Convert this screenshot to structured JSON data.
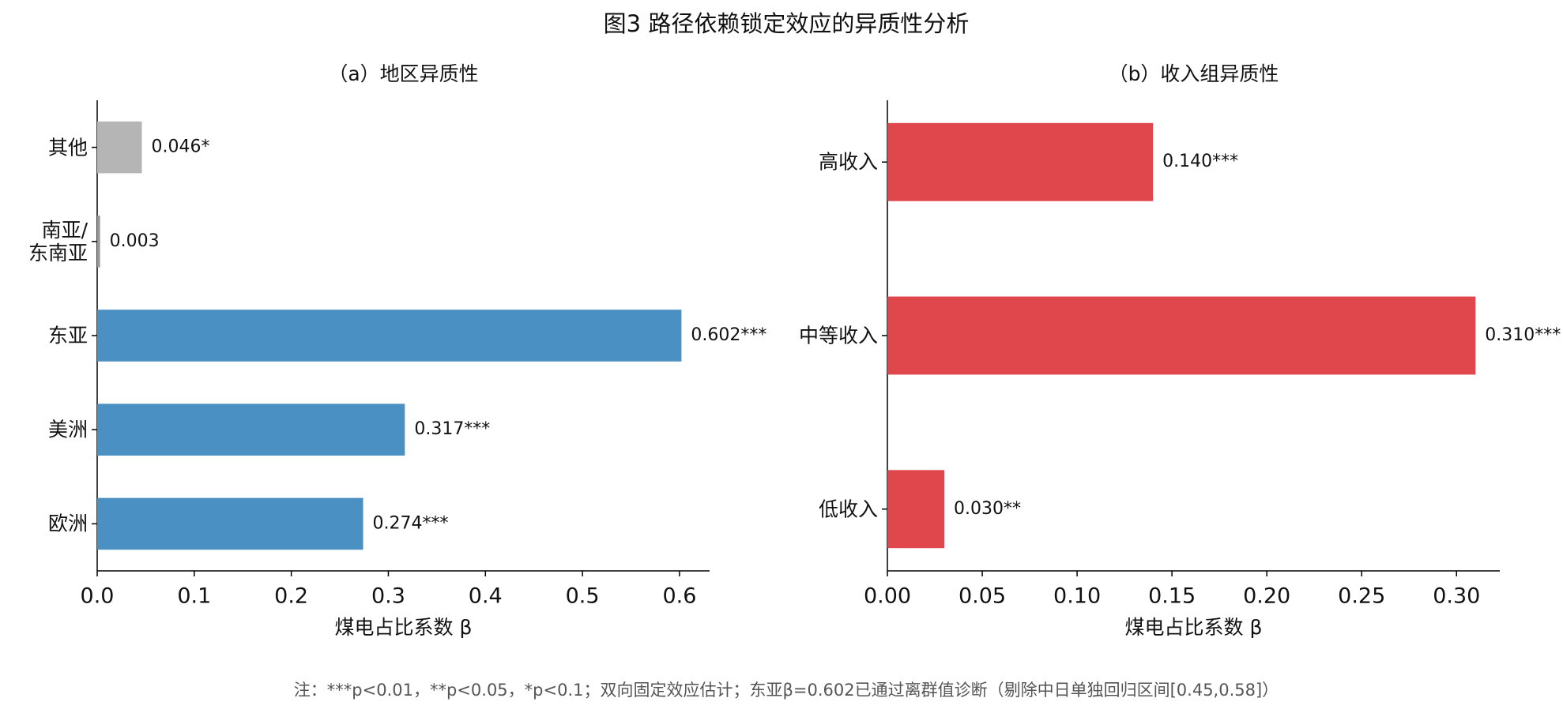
{
  "title": "图3  路径依赖锁定效应的异质性分析",
  "note": "注：***p<0.01，**p<0.05，*p<0.1；双向固定效应估计；东亚β=0.602已通过离群值诊断（剔除中日单独回归区间[0.45,0.58]）",
  "chart_data": [
    {
      "type": "barh",
      "title": "（a）地区异质性",
      "xlabel": "煤电占比系数 β",
      "categories": [
        "欧洲",
        "美洲",
        "东亚",
        "南亚/\n东南亚",
        "其他"
      ],
      "values": [
        0.274,
        0.317,
        0.602,
        0.003,
        0.046
      ],
      "value_labels": [
        "0.274***",
        "0.317***",
        "0.602***",
        "0.003",
        "0.046*"
      ],
      "colors": [
        "#4a90c2",
        "#4a90c2",
        "#4a90c2",
        "#999999",
        "#b5b5b5"
      ],
      "xlim": [
        0,
        0.631
      ],
      "xticks": [
        {
          "value": 0,
          "label": "0.0"
        },
        {
          "value": 0.1,
          "label": "0.1"
        },
        {
          "value": 0.2,
          "label": "0.2"
        },
        {
          "value": 0.3,
          "label": "0.3"
        },
        {
          "value": 0.4,
          "label": "0.4"
        },
        {
          "value": 0.5,
          "label": "0.5"
        },
        {
          "value": 0.6,
          "label": "0.6"
        }
      ]
    },
    {
      "type": "barh",
      "title": "（b）收入组异质性",
      "xlabel": "煤电占比系数 β",
      "categories": [
        "低收入",
        "中等收入",
        "高收入"
      ],
      "values": [
        0.03,
        0.31,
        0.14
      ],
      "value_labels": [
        "0.030**",
        "0.310***",
        "0.140***"
      ],
      "colors": [
        "#e0474c",
        "#e0474c",
        "#e0474c"
      ],
      "xlim": [
        0,
        0.3228
      ],
      "xticks": [
        {
          "value": 0,
          "label": "0.00"
        },
        {
          "value": 0.05,
          "label": "0.05"
        },
        {
          "value": 0.1,
          "label": "0.10"
        },
        {
          "value": 0.15,
          "label": "0.15"
        },
        {
          "value": 0.2,
          "label": "0.20"
        },
        {
          "value": 0.25,
          "label": "0.25"
        },
        {
          "value": 0.3,
          "label": "0.30"
        }
      ]
    }
  ]
}
